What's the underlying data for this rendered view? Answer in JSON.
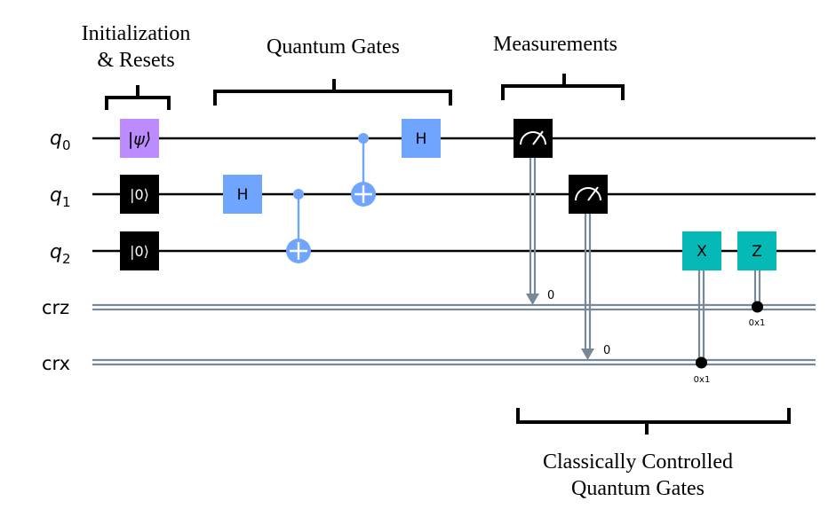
{
  "sections": {
    "init_line1": "Initialization",
    "init_line2": "& Resets",
    "gates": "Quantum Gates",
    "measurements": "Measurements",
    "classical_line1": "Classically Controlled",
    "classical_line2": "Quantum Gates"
  },
  "registers": {
    "q0_base": "q",
    "q0_sub": "0",
    "q1_base": "q",
    "q1_sub": "1",
    "q2_base": "q",
    "q2_sub": "2",
    "crz": "crz",
    "crx": "crx"
  },
  "gates": {
    "init_state": "|ψ⟩",
    "reset_q1": "|0⟩",
    "reset_q2": "|0⟩",
    "h_q1": "H",
    "h_q0": "H",
    "x_cond": "X",
    "z_cond": "Z"
  },
  "measure": {
    "m0_bit": "0",
    "m1_bit": "0"
  },
  "conditions": {
    "x_value": "0x1",
    "z_value": "0x1"
  },
  "colors": {
    "initialize": "#bb8bff",
    "reset": "#000000",
    "hadamard": "#6fa4ff",
    "cnot": "#6fa4ff",
    "measure": "#000000",
    "conditional": "#05bab6",
    "classical_wire": "#778899"
  }
}
